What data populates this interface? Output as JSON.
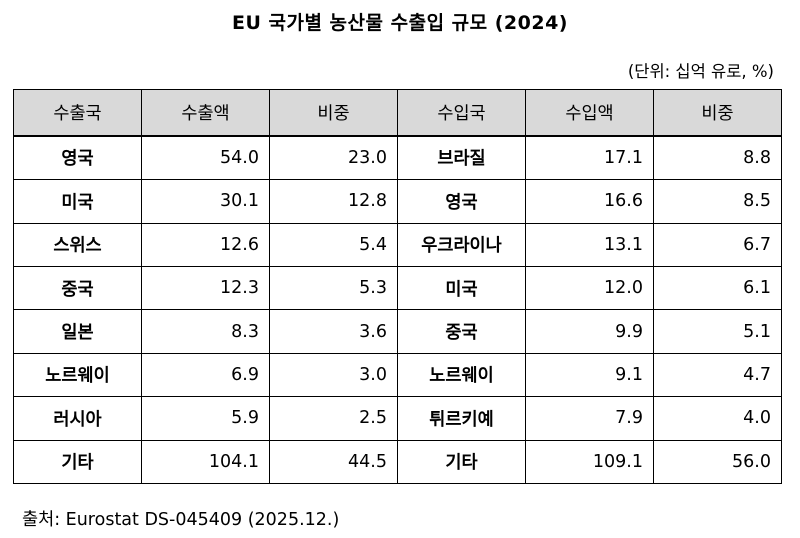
{
  "title": "EU 국가별 농산물 수출입 규모 (2024)",
  "unit": "(단위: 십억 유로, %)",
  "table": {
    "headers": [
      "수출국",
      "수출액",
      "비중",
      "수입국",
      "수입액",
      "비중"
    ],
    "rows": [
      [
        "영국",
        "54.0",
        "23.0",
        "브라질",
        "17.1",
        "8.8"
      ],
      [
        "미국",
        "30.1",
        "12.8",
        "영국",
        "16.6",
        "8.5"
      ],
      [
        "스위스",
        "12.6",
        "5.4",
        "우크라이나",
        "13.1",
        "6.7"
      ],
      [
        "중국",
        "12.3",
        "5.3",
        "미국",
        "12.0",
        "6.1"
      ],
      [
        "일본",
        "8.3",
        "3.6",
        "중국",
        "9.9",
        "5.1"
      ],
      [
        "노르웨이",
        "6.9",
        "3.0",
        "노르웨이",
        "9.1",
        "4.7"
      ],
      [
        "러시아",
        "5.9",
        "2.5",
        "튀르키예",
        "7.9",
        "4.0"
      ],
      [
        "기타",
        "104.1",
        "44.5",
        "기타",
        "109.1",
        "56.0"
      ]
    ]
  },
  "source": "출처: Eurostat DS-045409 (2025.12.)"
}
